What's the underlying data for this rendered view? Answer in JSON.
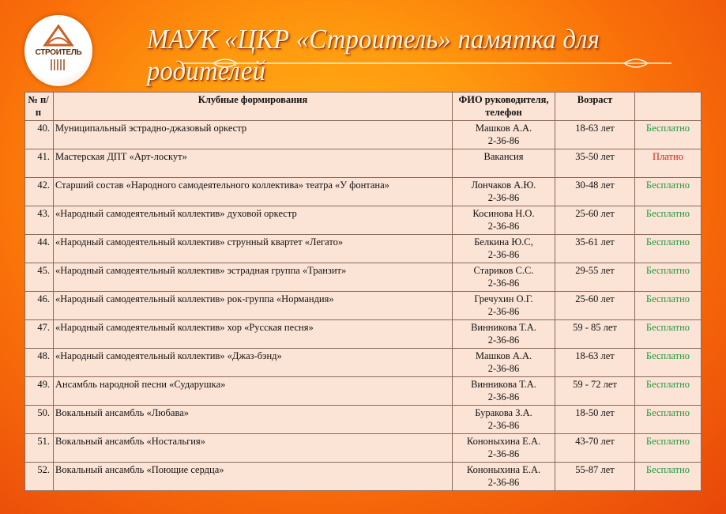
{
  "header": {
    "logo_text": "СТРОИТЕЛЬ",
    "title": "МАУК «ЦКР «Строитель» памятка для родителей"
  },
  "colors": {
    "free": "#1f9a3c",
    "paid": "#d42020"
  },
  "table": {
    "columns": [
      "№ п/п",
      "Клубные формирования",
      "ФИО руководителя, телефон",
      "Возраст",
      ""
    ],
    "rows": [
      {
        "num": "40.",
        "name": "Муниципальный эстрадно-джазовый оркестр",
        "leader": "Машков А.А.",
        "phone": "2-36-86",
        "age": "18-63 лет",
        "price": "Бесплатно"
      },
      {
        "num": "41.",
        "name": "Мастерская ДПТ «Арт-лоскут»",
        "leader": "Вакансия",
        "phone": "",
        "age": "35-50 лет",
        "price": "Платно"
      },
      {
        "num": "42.",
        "name": "Старший состав «Народного самодеятельного коллектива» театра «У фонтана»",
        "leader": "Лончаков А.Ю.",
        "phone": "2-36-86",
        "age": "30-48 лет",
        "price": "Бесплатно"
      },
      {
        "num": "43.",
        "name": "«Народный самодеятельный коллектив» духовой оркестр",
        "leader": "Косинова Н.О.",
        "phone": "2-36-86",
        "age": "25-60 лет",
        "price": "Бесплатно"
      },
      {
        "num": "44.",
        "name": "«Народный самодеятельный коллектив» струнный квартет «Легато»",
        "leader": "Белкина Ю.С,",
        "phone": "2-36-86",
        "age": "35-61 лет",
        "price": "Бесплатно"
      },
      {
        "num": "45.",
        "name": "«Народный самодеятельный коллектив» эстрадная группа «Транзит»",
        "leader": "Стариков С.С.",
        "phone": "2-36-86",
        "age": "29-55 лет",
        "price": "Бесплатно"
      },
      {
        "num": "46.",
        "name": "«Народный самодеятельный коллектив» рок-группа «Нормандия»",
        "leader": "Гречухин О.Г.",
        "phone": "2-36-86",
        "age": "25-60 лет",
        "price": "Бесплатно"
      },
      {
        "num": "47.",
        "name": "«Народный самодеятельный коллектив» хор «Русская песня»",
        "leader": "Винникова Т.А.",
        "phone": "2-36-86",
        "age": "59 - 85 лет",
        "price": "Бесплатно"
      },
      {
        "num": "48.",
        "name": "«Народный самодеятельный  коллектив» «Джаз-бэнд»",
        "leader": "Машков А.А.",
        "phone": "2-36-86",
        "age": "18-63 лет",
        "price": "Бесплатно"
      },
      {
        "num": "49.",
        "name": "Ансамбль народной песни «Сударушка»",
        "leader": "Винникова Т.А.",
        "phone": "2-36-86",
        "age": "59 - 72 лет",
        "price": "Бесплатно"
      },
      {
        "num": "50.",
        "name": "Вокальный ансамбль «Любава»",
        "leader": "Буракова З.А.",
        "phone": "2-36-86",
        "age": "18-50 лет",
        "price": "Бесплатно"
      },
      {
        "num": "51.",
        "name": "Вокальный ансамбль «Ностальгия»",
        "leader": "Кононыхина Е.А.",
        "phone": "2-36-86",
        "age": "43-70 лет",
        "price": "Бесплатно"
      },
      {
        "num": "52.",
        "name": "Вокальный ансамбль «Поющие сердца»",
        "leader": "Кононыхина Е.А.",
        "phone": "2-36-86",
        "age": "55-87 лет",
        "price": "Бесплатно"
      }
    ]
  }
}
